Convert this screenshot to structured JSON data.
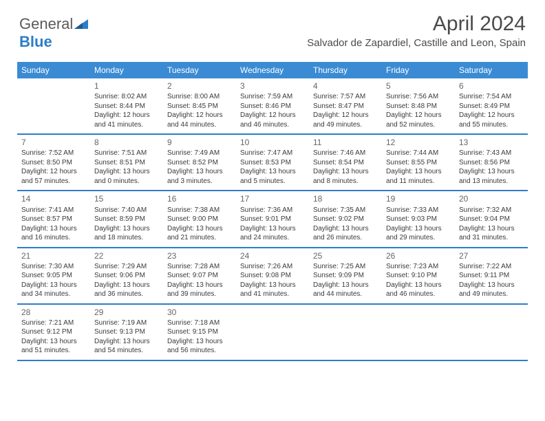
{
  "logo": {
    "text1": "General",
    "text2": "Blue"
  },
  "title": "April 2024",
  "subtitle": "Salvador de Zapardiel, Castille and Leon, Spain",
  "colors": {
    "header_bg": "#3b8bd4",
    "row_border": "#2d7dc7",
    "text": "#333333",
    "daynum": "#666666",
    "logo_gray": "#5a5a5a",
    "logo_blue": "#2d7dc7",
    "background": "#ffffff"
  },
  "weekdays": [
    "Sunday",
    "Monday",
    "Tuesday",
    "Wednesday",
    "Thursday",
    "Friday",
    "Saturday"
  ],
  "weeks": [
    [
      {
        "day": "",
        "sunrise": "",
        "sunset": "",
        "dl1": "",
        "dl2": ""
      },
      {
        "day": "1",
        "sunrise": "Sunrise: 8:02 AM",
        "sunset": "Sunset: 8:44 PM",
        "dl1": "Daylight: 12 hours",
        "dl2": "and 41 minutes."
      },
      {
        "day": "2",
        "sunrise": "Sunrise: 8:00 AM",
        "sunset": "Sunset: 8:45 PM",
        "dl1": "Daylight: 12 hours",
        "dl2": "and 44 minutes."
      },
      {
        "day": "3",
        "sunrise": "Sunrise: 7:59 AM",
        "sunset": "Sunset: 8:46 PM",
        "dl1": "Daylight: 12 hours",
        "dl2": "and 46 minutes."
      },
      {
        "day": "4",
        "sunrise": "Sunrise: 7:57 AM",
        "sunset": "Sunset: 8:47 PM",
        "dl1": "Daylight: 12 hours",
        "dl2": "and 49 minutes."
      },
      {
        "day": "5",
        "sunrise": "Sunrise: 7:56 AM",
        "sunset": "Sunset: 8:48 PM",
        "dl1": "Daylight: 12 hours",
        "dl2": "and 52 minutes."
      },
      {
        "day": "6",
        "sunrise": "Sunrise: 7:54 AM",
        "sunset": "Sunset: 8:49 PM",
        "dl1": "Daylight: 12 hours",
        "dl2": "and 55 minutes."
      }
    ],
    [
      {
        "day": "7",
        "sunrise": "Sunrise: 7:52 AM",
        "sunset": "Sunset: 8:50 PM",
        "dl1": "Daylight: 12 hours",
        "dl2": "and 57 minutes."
      },
      {
        "day": "8",
        "sunrise": "Sunrise: 7:51 AM",
        "sunset": "Sunset: 8:51 PM",
        "dl1": "Daylight: 13 hours",
        "dl2": "and 0 minutes."
      },
      {
        "day": "9",
        "sunrise": "Sunrise: 7:49 AM",
        "sunset": "Sunset: 8:52 PM",
        "dl1": "Daylight: 13 hours",
        "dl2": "and 3 minutes."
      },
      {
        "day": "10",
        "sunrise": "Sunrise: 7:47 AM",
        "sunset": "Sunset: 8:53 PM",
        "dl1": "Daylight: 13 hours",
        "dl2": "and 5 minutes."
      },
      {
        "day": "11",
        "sunrise": "Sunrise: 7:46 AM",
        "sunset": "Sunset: 8:54 PM",
        "dl1": "Daylight: 13 hours",
        "dl2": "and 8 minutes."
      },
      {
        "day": "12",
        "sunrise": "Sunrise: 7:44 AM",
        "sunset": "Sunset: 8:55 PM",
        "dl1": "Daylight: 13 hours",
        "dl2": "and 11 minutes."
      },
      {
        "day": "13",
        "sunrise": "Sunrise: 7:43 AM",
        "sunset": "Sunset: 8:56 PM",
        "dl1": "Daylight: 13 hours",
        "dl2": "and 13 minutes."
      }
    ],
    [
      {
        "day": "14",
        "sunrise": "Sunrise: 7:41 AM",
        "sunset": "Sunset: 8:57 PM",
        "dl1": "Daylight: 13 hours",
        "dl2": "and 16 minutes."
      },
      {
        "day": "15",
        "sunrise": "Sunrise: 7:40 AM",
        "sunset": "Sunset: 8:59 PM",
        "dl1": "Daylight: 13 hours",
        "dl2": "and 18 minutes."
      },
      {
        "day": "16",
        "sunrise": "Sunrise: 7:38 AM",
        "sunset": "Sunset: 9:00 PM",
        "dl1": "Daylight: 13 hours",
        "dl2": "and 21 minutes."
      },
      {
        "day": "17",
        "sunrise": "Sunrise: 7:36 AM",
        "sunset": "Sunset: 9:01 PM",
        "dl1": "Daylight: 13 hours",
        "dl2": "and 24 minutes."
      },
      {
        "day": "18",
        "sunrise": "Sunrise: 7:35 AM",
        "sunset": "Sunset: 9:02 PM",
        "dl1": "Daylight: 13 hours",
        "dl2": "and 26 minutes."
      },
      {
        "day": "19",
        "sunrise": "Sunrise: 7:33 AM",
        "sunset": "Sunset: 9:03 PM",
        "dl1": "Daylight: 13 hours",
        "dl2": "and 29 minutes."
      },
      {
        "day": "20",
        "sunrise": "Sunrise: 7:32 AM",
        "sunset": "Sunset: 9:04 PM",
        "dl1": "Daylight: 13 hours",
        "dl2": "and 31 minutes."
      }
    ],
    [
      {
        "day": "21",
        "sunrise": "Sunrise: 7:30 AM",
        "sunset": "Sunset: 9:05 PM",
        "dl1": "Daylight: 13 hours",
        "dl2": "and 34 minutes."
      },
      {
        "day": "22",
        "sunrise": "Sunrise: 7:29 AM",
        "sunset": "Sunset: 9:06 PM",
        "dl1": "Daylight: 13 hours",
        "dl2": "and 36 minutes."
      },
      {
        "day": "23",
        "sunrise": "Sunrise: 7:28 AM",
        "sunset": "Sunset: 9:07 PM",
        "dl1": "Daylight: 13 hours",
        "dl2": "and 39 minutes."
      },
      {
        "day": "24",
        "sunrise": "Sunrise: 7:26 AM",
        "sunset": "Sunset: 9:08 PM",
        "dl1": "Daylight: 13 hours",
        "dl2": "and 41 minutes."
      },
      {
        "day": "25",
        "sunrise": "Sunrise: 7:25 AM",
        "sunset": "Sunset: 9:09 PM",
        "dl1": "Daylight: 13 hours",
        "dl2": "and 44 minutes."
      },
      {
        "day": "26",
        "sunrise": "Sunrise: 7:23 AM",
        "sunset": "Sunset: 9:10 PM",
        "dl1": "Daylight: 13 hours",
        "dl2": "and 46 minutes."
      },
      {
        "day": "27",
        "sunrise": "Sunrise: 7:22 AM",
        "sunset": "Sunset: 9:11 PM",
        "dl1": "Daylight: 13 hours",
        "dl2": "and 49 minutes."
      }
    ],
    [
      {
        "day": "28",
        "sunrise": "Sunrise: 7:21 AM",
        "sunset": "Sunset: 9:12 PM",
        "dl1": "Daylight: 13 hours",
        "dl2": "and 51 minutes."
      },
      {
        "day": "29",
        "sunrise": "Sunrise: 7:19 AM",
        "sunset": "Sunset: 9:13 PM",
        "dl1": "Daylight: 13 hours",
        "dl2": "and 54 minutes."
      },
      {
        "day": "30",
        "sunrise": "Sunrise: 7:18 AM",
        "sunset": "Sunset: 9:15 PM",
        "dl1": "Daylight: 13 hours",
        "dl2": "and 56 minutes."
      },
      {
        "day": "",
        "sunrise": "",
        "sunset": "",
        "dl1": "",
        "dl2": ""
      },
      {
        "day": "",
        "sunrise": "",
        "sunset": "",
        "dl1": "",
        "dl2": ""
      },
      {
        "day": "",
        "sunrise": "",
        "sunset": "",
        "dl1": "",
        "dl2": ""
      },
      {
        "day": "",
        "sunrise": "",
        "sunset": "",
        "dl1": "",
        "dl2": ""
      }
    ]
  ]
}
